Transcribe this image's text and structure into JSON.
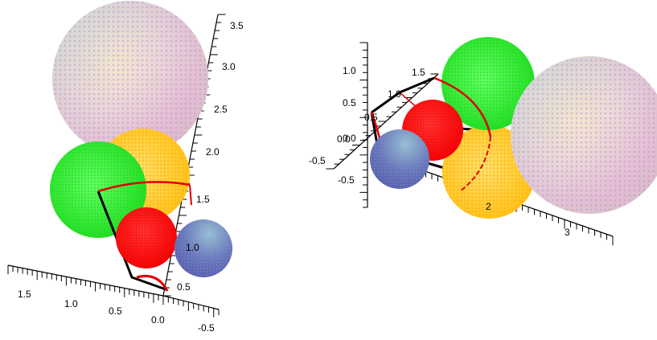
{
  "left_panel": {
    "vertical_axis_labels": [
      "3.5",
      "3.0",
      "2.5",
      "2.0",
      "1.5",
      "1.0",
      "0.5"
    ],
    "left_axis_labels": [
      "1.5",
      "1.0",
      "0.5",
      "0.0"
    ],
    "right_axis_labels": [
      "-0.5"
    ],
    "spheres": [
      {
        "name": "pastel",
        "colors": [
          "#f5c4e0",
          "#b8e0c8",
          "#f0d9a8",
          "#c9b8f0"
        ]
      },
      {
        "name": "yellow",
        "colors": [
          "#ffd21a",
          "#f5a800"
        ]
      },
      {
        "name": "green",
        "colors": [
          "#33ff33",
          "#11cc11"
        ]
      },
      {
        "name": "red",
        "colors": [
          "#ff1a1a",
          "#dd0000"
        ]
      },
      {
        "name": "blue",
        "colors": [
          "#5a62b8",
          "#8ab3cc"
        ]
      }
    ]
  },
  "right_panel": {
    "vertical_axis_labels": [
      "1.0",
      "0.5",
      "0.0",
      "-0.5"
    ],
    "back_axis_labels": [
      "1.5",
      "1.0",
      "0.5",
      "0.0"
    ],
    "front_axis_labels": [
      "2",
      "3"
    ],
    "left_short_label": "-0.5",
    "spheres": [
      {
        "name": "green",
        "colors": [
          "#33ff33",
          "#11cc11"
        ]
      },
      {
        "name": "red",
        "colors": [
          "#ff1a1a",
          "#dd0000"
        ]
      },
      {
        "name": "blue",
        "colors": [
          "#5a62b8",
          "#8ab3cc"
        ]
      },
      {
        "name": "yellow",
        "colors": [
          "#ffd21a",
          "#f5a800"
        ]
      },
      {
        "name": "pastel",
        "colors": [
          "#f5c4e0",
          "#b8e0c8",
          "#f0d9a8",
          "#c9b8f0"
        ]
      }
    ]
  },
  "colors": {
    "axis": "#000000",
    "frame_red": "#e00000",
    "frame_black": "#000000"
  }
}
